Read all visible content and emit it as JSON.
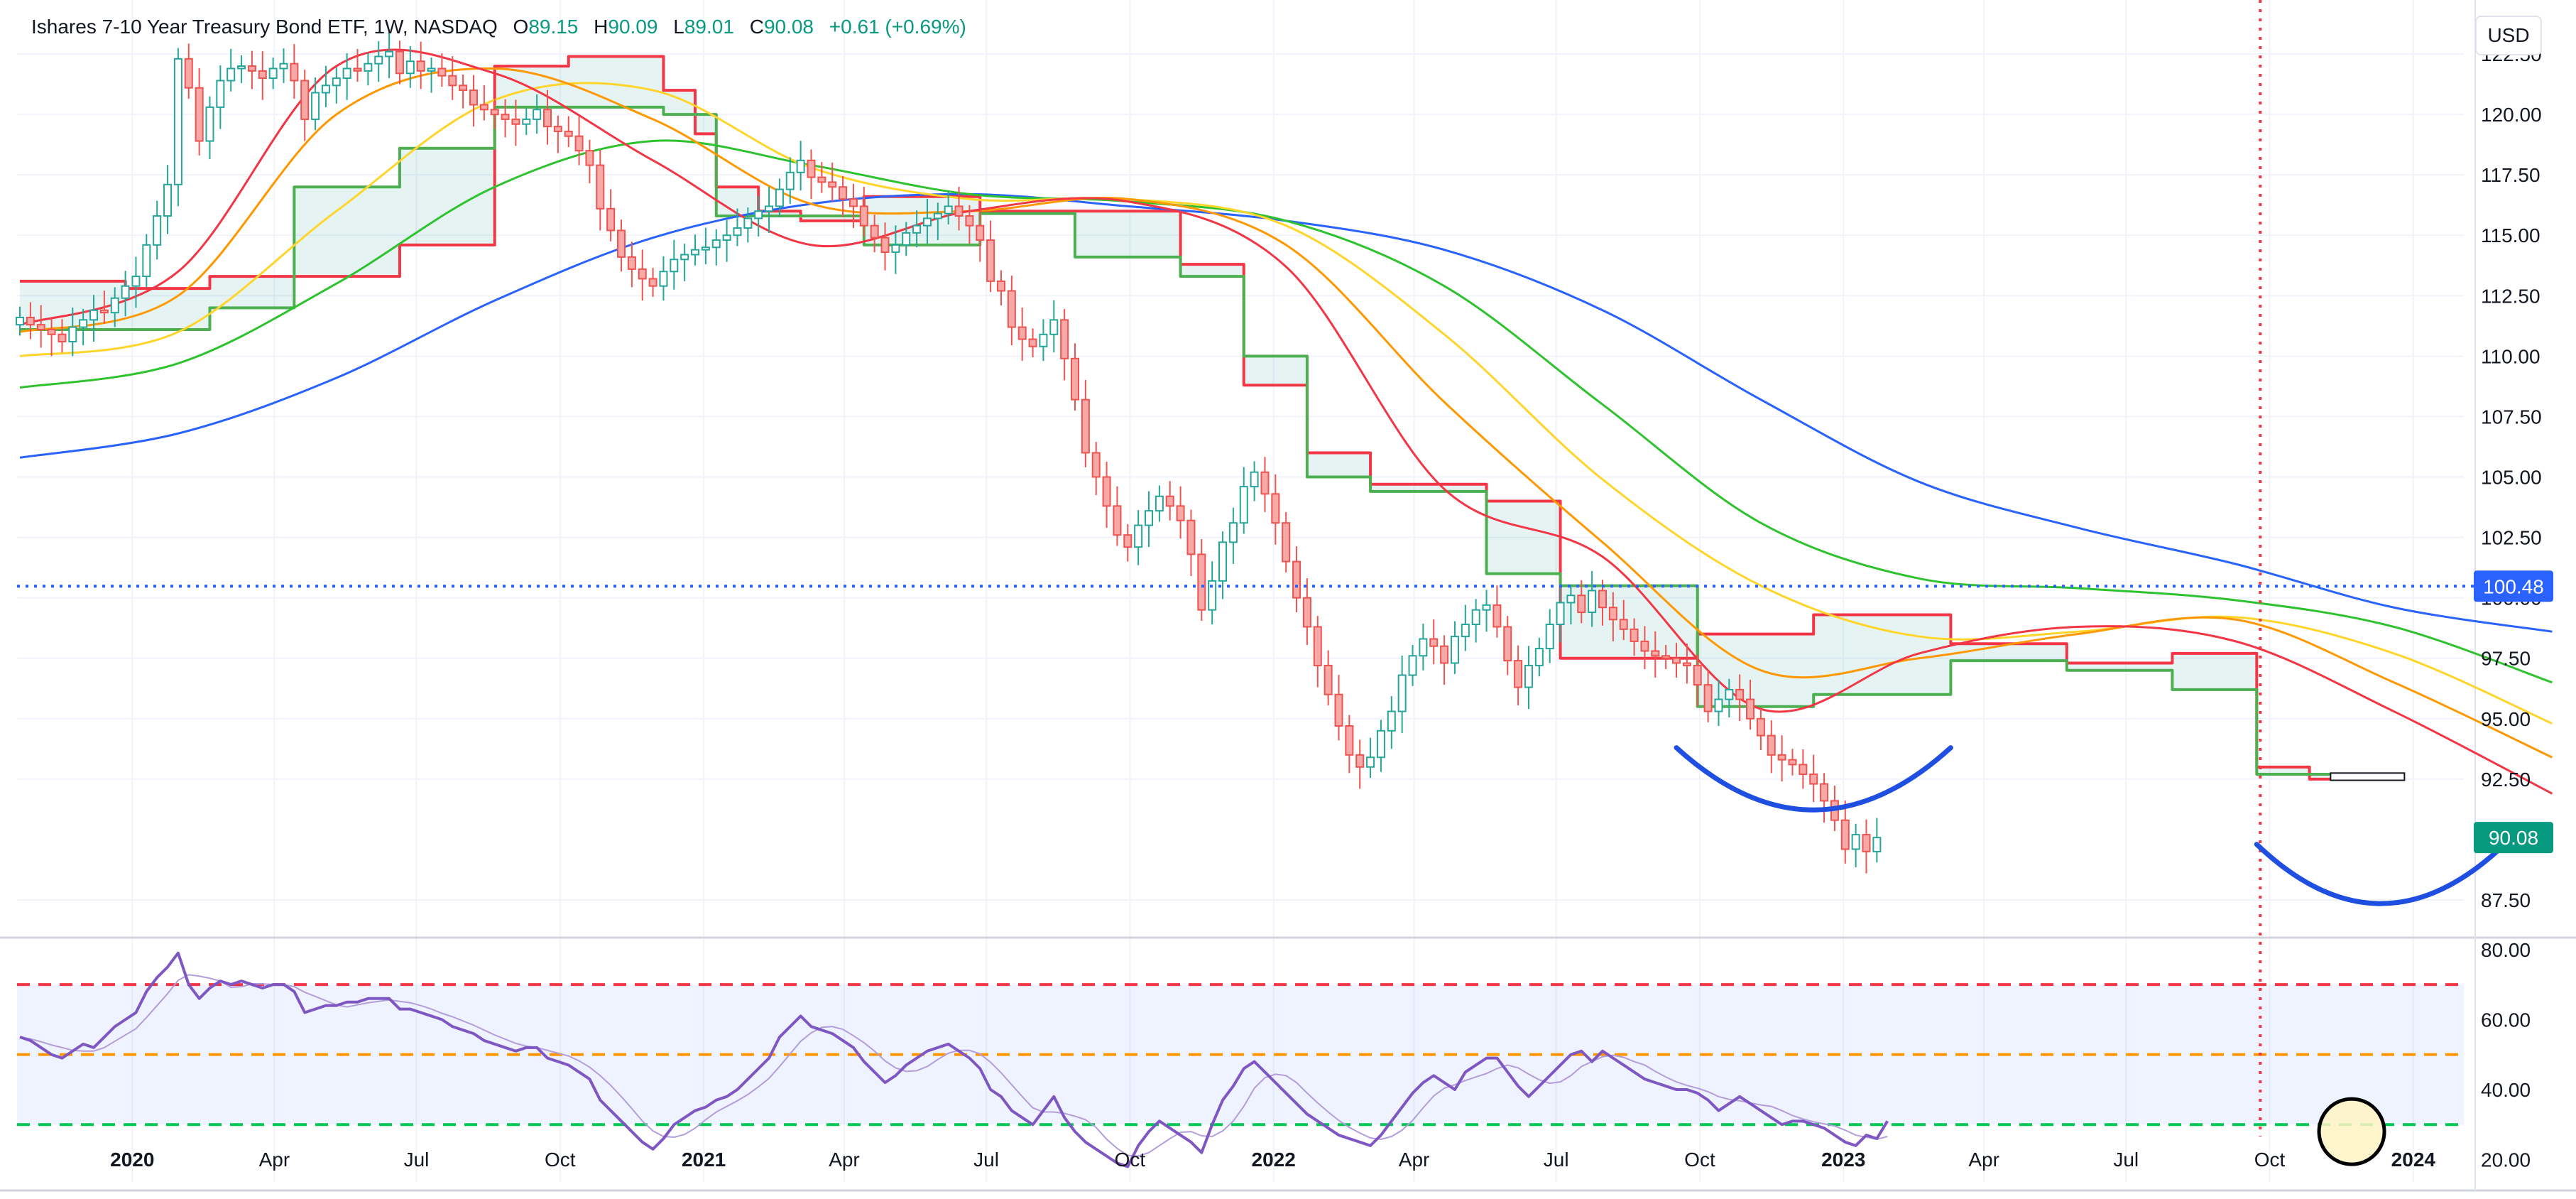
{
  "header": {
    "symbol": "Ishares 7-10 Year Treasury Bond ETF, 1W, NASDAQ",
    "o_label": "O",
    "o": "89.15",
    "h_label": "H",
    "h": "90.09",
    "l_label": "L",
    "l": "89.01",
    "c_label": "C",
    "c": "90.08",
    "change": "+0.61 (+0.69%)"
  },
  "currency": "USD",
  "colors": {
    "up": "#26a69a",
    "down": "#ef5350",
    "ma_blue": "#2962ff",
    "ma_green": "#2fc22f",
    "ma_yellow": "#ffd52b",
    "ma_orange": "#ff9800",
    "ma_red": "#f23645",
    "cloud_green": "#4caf50",
    "rsi_line": "#7e57c2",
    "accent_blue": "#1e4fe0"
  },
  "chart_data": {
    "type": "candlestick",
    "price_axis": {
      "min": 86.0,
      "max": 124.5,
      "ticks": [
        "122.50",
        "120.00",
        "117.50",
        "115.00",
        "112.50",
        "110.00",
        "107.50",
        "105.00",
        "102.50",
        "100.00",
        "97.50",
        "95.00",
        "92.50",
        "87.50"
      ]
    },
    "price_labels": {
      "last": "90.08",
      "hline": "100.48"
    },
    "hline": 100.48,
    "time_axis": {
      "start": "2019-10-21",
      "end": "2024-01-22",
      "labels": [
        {
          "text": "2020",
          "date": "2020-01-01",
          "bold": true
        },
        {
          "text": "Apr",
          "date": "2020-04-01"
        },
        {
          "text": "Jul",
          "date": "2020-07-01"
        },
        {
          "text": "Oct",
          "date": "2020-10-01"
        },
        {
          "text": "2021",
          "date": "2021-01-01",
          "bold": true
        },
        {
          "text": "Apr",
          "date": "2021-04-01"
        },
        {
          "text": "Jul",
          "date": "2021-07-01"
        },
        {
          "text": "Oct",
          "date": "2021-10-01"
        },
        {
          "text": "2022",
          "date": "2022-01-01",
          "bold": true
        },
        {
          "text": "Apr",
          "date": "2022-04-01"
        },
        {
          "text": "Jul",
          "date": "2022-07-01"
        },
        {
          "text": "Oct",
          "date": "2022-10-01"
        },
        {
          "text": "2023",
          "date": "2023-01-01",
          "bold": true
        },
        {
          "text": "Apr",
          "date": "2023-04-01"
        },
        {
          "text": "Jul",
          "date": "2023-07-01"
        },
        {
          "text": "Oct",
          "date": "2023-10-01"
        },
        {
          "text": "2024",
          "date": "2024-01-01",
          "bold": true
        }
      ]
    },
    "vline_date": "2023-09-25",
    "closes": [
      111.6,
      111.3,
      111.1,
      110.9,
      110.6,
      111.2,
      111.5,
      111.9,
      111.8,
      112.4,
      112.9,
      113.3,
      114.6,
      115.8,
      117.1,
      122.3,
      121.1,
      118.9,
      120.3,
      121.4,
      121.9,
      122.0,
      121.8,
      121.5,
      121.9,
      122.1,
      121.4,
      119.8,
      120.9,
      121.2,
      121.5,
      121.9,
      121.8,
      122.1,
      122.4,
      122.6,
      121.7,
      122.2,
      121.8,
      121.9,
      121.6,
      121.2,
      121.0,
      120.4,
      120.2,
      120.0,
      119.8,
      119.6,
      119.8,
      120.2,
      119.5,
      119.3,
      119.1,
      118.5,
      117.9,
      116.1,
      115.2,
      114.1,
      113.6,
      113.2,
      112.9,
      113.5,
      114.0,
      114.2,
      114.4,
      114.5,
      114.8,
      115.0,
      115.3,
      115.7,
      116.0,
      116.2,
      116.9,
      117.6,
      118.1,
      117.4,
      117.2,
      117.0,
      116.5,
      116.2,
      115.4,
      114.9,
      114.3,
      114.6,
      115.1,
      115.4,
      115.7,
      115.9,
      116.2,
      115.8,
      115.4,
      114.8,
      113.1,
      112.7,
      111.2,
      110.7,
      110.4,
      110.9,
      111.5,
      109.9,
      108.2,
      106.0,
      105.0,
      103.8,
      102.6,
      102.1,
      103.0,
      103.6,
      104.2,
      103.8,
      103.2,
      101.8,
      99.5,
      100.7,
      102.3,
      103.1,
      104.6,
      105.2,
      104.3,
      103.1,
      101.5,
      100.0,
      98.8,
      97.2,
      96.0,
      94.7,
      93.5,
      93.0,
      93.4,
      94.5,
      95.3,
      96.8,
      97.6,
      98.3,
      98.0,
      97.3,
      98.4,
      98.9,
      99.5,
      99.7,
      98.8,
      97.4,
      96.3,
      97.2,
      97.9,
      98.9,
      99.8,
      100.1,
      99.4,
      100.3,
      99.6,
      99.1,
      98.7,
      98.2,
      97.8,
      97.6,
      97.5,
      97.3,
      97.2,
      96.4,
      95.3,
      95.8,
      96.2,
      95.8,
      95.0,
      94.3,
      93.5,
      93.3,
      93.1,
      92.7,
      92.3,
      91.6,
      90.8,
      89.6,
      90.2,
      89.5,
      90.08
    ],
    "ma_blue": [
      [
        0,
        105.8
      ],
      [
        15,
        106.8
      ],
      [
        30,
        109.1
      ],
      [
        45,
        112.3
      ],
      [
        60,
        114.9
      ],
      [
        75,
        116.3
      ],
      [
        90,
        116.7
      ],
      [
        105,
        116.2
      ],
      [
        120,
        115.6
      ],
      [
        135,
        114.4
      ],
      [
        150,
        111.9
      ],
      [
        165,
        108.2
      ],
      [
        180,
        104.8
      ],
      [
        195,
        102.9
      ],
      [
        210,
        101.4
      ],
      [
        225,
        99.6
      ],
      [
        240,
        98.6
      ]
    ],
    "ma_green": [
      [
        0,
        108.7
      ],
      [
        15,
        109.7
      ],
      [
        30,
        113.0
      ],
      [
        45,
        117.0
      ],
      [
        60,
        118.9
      ],
      [
        75,
        117.9
      ],
      [
        90,
        116.7
      ],
      [
        105,
        116.4
      ],
      [
        120,
        115.6
      ],
      [
        135,
        112.9
      ],
      [
        150,
        108.0
      ],
      [
        165,
        103.1
      ],
      [
        180,
        100.8
      ],
      [
        195,
        100.4
      ],
      [
        210,
        99.9
      ],
      [
        225,
        98.8
      ],
      [
        240,
        96.5
      ]
    ],
    "ma_yellow": [
      [
        0,
        110.0
      ],
      [
        15,
        111.0
      ],
      [
        30,
        116.0
      ],
      [
        45,
        120.6
      ],
      [
        60,
        121.0
      ],
      [
        75,
        117.8
      ],
      [
        90,
        116.5
      ],
      [
        105,
        116.5
      ],
      [
        120,
        115.4
      ],
      [
        135,
        110.9
      ],
      [
        150,
        104.9
      ],
      [
        165,
        100.5
      ],
      [
        180,
        98.4
      ],
      [
        195,
        98.6
      ],
      [
        210,
        99.2
      ],
      [
        225,
        97.7
      ],
      [
        240,
        94.8
      ]
    ],
    "ma_orange": [
      [
        0,
        111.0
      ],
      [
        15,
        112.5
      ],
      [
        30,
        120.0
      ],
      [
        45,
        121.9
      ],
      [
        60,
        119.8
      ],
      [
        75,
        116.3
      ],
      [
        90,
        116.0
      ],
      [
        105,
        116.5
      ],
      [
        120,
        114.6
      ],
      [
        135,
        108.1
      ],
      [
        150,
        102.3
      ],
      [
        165,
        97.0
      ],
      [
        180,
        97.5
      ],
      [
        195,
        98.5
      ],
      [
        210,
        99.1
      ],
      [
        225,
        96.5
      ],
      [
        240,
        93.4
      ]
    ],
    "ma_red": [
      [
        0,
        111.3
      ],
      [
        15,
        113.5
      ],
      [
        30,
        122.0
      ],
      [
        45,
        121.7
      ],
      [
        60,
        118.1
      ],
      [
        75,
        114.6
      ],
      [
        90,
        116.0
      ],
      [
        105,
        116.4
      ],
      [
        120,
        113.7
      ],
      [
        135,
        104.5
      ],
      [
        150,
        101.7
      ],
      [
        165,
        95.4
      ],
      [
        180,
        97.7
      ],
      [
        195,
        98.8
      ],
      [
        210,
        98.2
      ],
      [
        225,
        95.3
      ],
      [
        240,
        91.9
      ]
    ],
    "cloud_upper": [
      [
        0,
        113.1
      ],
      [
        10,
        113.1
      ],
      [
        10,
        112.8
      ],
      [
        18,
        112.8
      ],
      [
        18,
        113.3
      ],
      [
        36,
        113.3
      ],
      [
        36,
        114.6
      ],
      [
        45,
        114.6
      ],
      [
        45,
        122.0
      ],
      [
        52,
        122.0
      ],
      [
        52,
        122.4
      ],
      [
        61,
        122.4
      ],
      [
        61,
        121.0
      ],
      [
        64,
        121.0
      ],
      [
        64,
        119.2
      ],
      [
        66,
        119.2
      ],
      [
        66,
        117.0
      ],
      [
        70,
        117.0
      ],
      [
        70,
        116.0
      ],
      [
        74,
        116.0
      ],
      [
        74,
        115.6
      ],
      [
        80,
        115.6
      ],
      [
        80,
        116.6
      ],
      [
        91,
        116.6
      ],
      [
        91,
        116.0
      ],
      [
        100,
        116.0
      ],
      [
        100,
        116.0
      ],
      [
        110,
        116.0
      ],
      [
        110,
        113.8
      ],
      [
        116,
        113.8
      ],
      [
        116,
        108.8
      ],
      [
        122,
        108.8
      ],
      [
        122,
        106.0
      ],
      [
        128,
        106.0
      ],
      [
        128,
        104.7
      ],
      [
        139,
        104.7
      ],
      [
        139,
        104.0
      ],
      [
        146,
        104.0
      ],
      [
        146,
        97.5
      ],
      [
        159,
        97.5
      ],
      [
        159,
        98.5
      ],
      [
        170,
        98.5
      ],
      [
        170,
        99.3
      ],
      [
        183,
        99.3
      ],
      [
        183,
        98.1
      ],
      [
        194,
        98.1
      ],
      [
        194,
        97.3
      ],
      [
        204,
        97.3
      ],
      [
        204,
        97.7
      ],
      [
        212,
        97.7
      ],
      [
        212,
        93.0
      ],
      [
        217,
        93.0
      ],
      [
        217,
        92.5
      ],
      [
        220,
        92.5
      ]
    ],
    "cloud_lower": [
      [
        0,
        111.1
      ],
      [
        10,
        111.1
      ],
      [
        10,
        111.1
      ],
      [
        18,
        111.1
      ],
      [
        18,
        112.0
      ],
      [
        26,
        112.0
      ],
      [
        26,
        117.0
      ],
      [
        36,
        117.0
      ],
      [
        36,
        118.6
      ],
      [
        45,
        118.6
      ],
      [
        45,
        120.3
      ],
      [
        52,
        120.3
      ],
      [
        52,
        120.3
      ],
      [
        61,
        120.3
      ],
      [
        61,
        120.0
      ],
      [
        66,
        120.0
      ],
      [
        66,
        115.8
      ],
      [
        80,
        115.8
      ],
      [
        80,
        114.6
      ],
      [
        91,
        114.6
      ],
      [
        91,
        115.9
      ],
      [
        100,
        115.9
      ],
      [
        100,
        114.1
      ],
      [
        110,
        114.1
      ],
      [
        110,
        113.3
      ],
      [
        116,
        113.3
      ],
      [
        116,
        110.0
      ],
      [
        122,
        110.0
      ],
      [
        122,
        105.0
      ],
      [
        128,
        105.0
      ],
      [
        128,
        104.4
      ],
      [
        139,
        104.4
      ],
      [
        139,
        101.0
      ],
      [
        146,
        101.0
      ],
      [
        146,
        100.5
      ],
      [
        159,
        100.5
      ],
      [
        159,
        95.5
      ],
      [
        170,
        95.5
      ],
      [
        170,
        96.0
      ],
      [
        183,
        96.0
      ],
      [
        183,
        97.4
      ],
      [
        194,
        97.4
      ],
      [
        194,
        97.0
      ],
      [
        204,
        97.0
      ],
      [
        204,
        96.2
      ],
      [
        212,
        96.2
      ],
      [
        212,
        92.7
      ],
      [
        220,
        92.7
      ]
    ],
    "rsi": {
      "axis": {
        "min": 12,
        "max": 83,
        "ticks": [
          "80.00",
          "60.00",
          "40.00",
          "20.00"
        ]
      },
      "levels": [
        {
          "value": 70,
          "color": "#f23645"
        },
        {
          "value": 50,
          "color": "#ff9800"
        },
        {
          "value": 30,
          "color": "#00c853"
        }
      ],
      "values": [
        55,
        54,
        52,
        50,
        49,
        51,
        53,
        52,
        55,
        58,
        60,
        62,
        68,
        72,
        75,
        79,
        70,
        66,
        69,
        71,
        70,
        71,
        70,
        69,
        70,
        70,
        68,
        62,
        63,
        64,
        64,
        65,
        65,
        66,
        66,
        66,
        63,
        63,
        62,
        61,
        60,
        58,
        57,
        56,
        54,
        53,
        52,
        51,
        52,
        52,
        49,
        48,
        47,
        45,
        43,
        37,
        34,
        31,
        28,
        25,
        23,
        26,
        30,
        32,
        34,
        35,
        37,
        38,
        40,
        43,
        46,
        49,
        55,
        58,
        61,
        58,
        57,
        56,
        54,
        52,
        48,
        45,
        42,
        44,
        47,
        49,
        51,
        52,
        53,
        51,
        49,
        46,
        40,
        38,
        34,
        32,
        30,
        34,
        38,
        32,
        28,
        25,
        23,
        21,
        19,
        18,
        24,
        28,
        31,
        29,
        27,
        25,
        22,
        30,
        37,
        41,
        46,
        48,
        45,
        42,
        39,
        36,
        33,
        31,
        29,
        27,
        26,
        25,
        24,
        27,
        31,
        35,
        39,
        42,
        44,
        42,
        40,
        45,
        47,
        49,
        49,
        45,
        41,
        38,
        41,
        44,
        47,
        50,
        51,
        48,
        51,
        49,
        47,
        45,
        43,
        42,
        41,
        40,
        40,
        39,
        37,
        34,
        36,
        38,
        36,
        34,
        32,
        30,
        31,
        31,
        30,
        29,
        27,
        25,
        24,
        27,
        26,
        31
      ]
    }
  }
}
